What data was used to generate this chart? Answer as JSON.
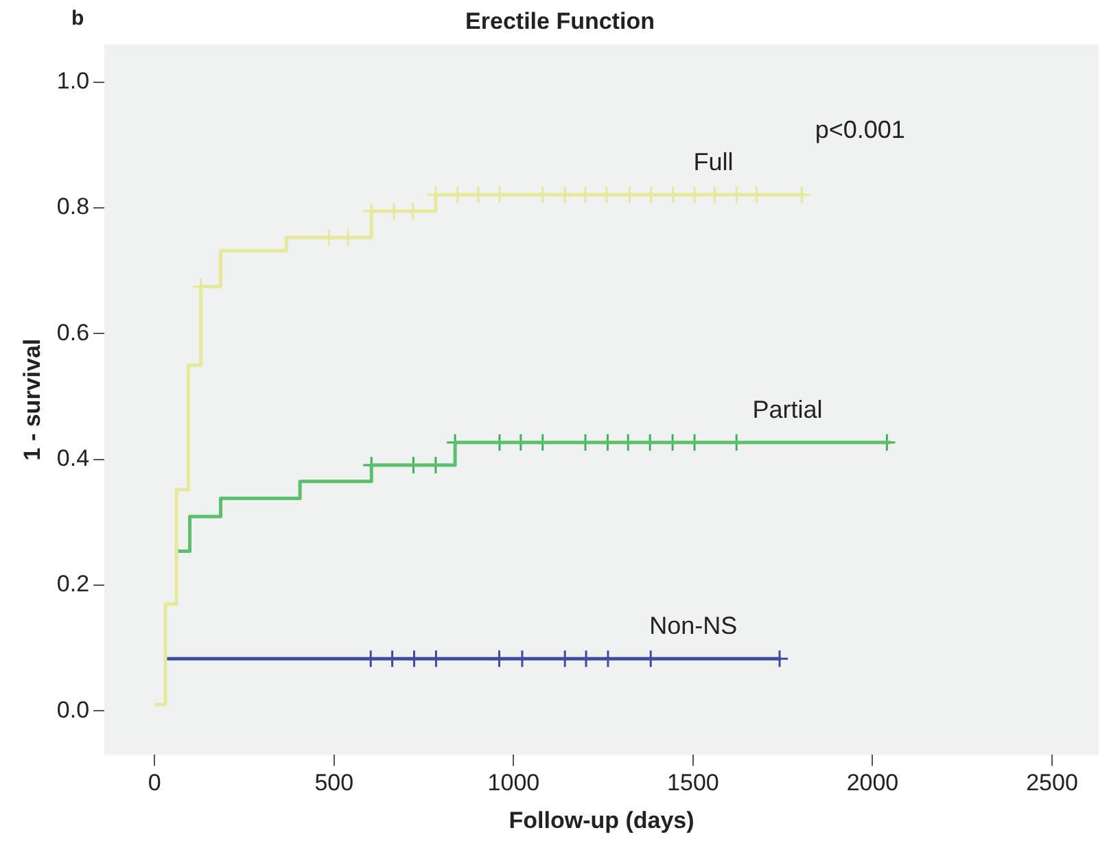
{
  "chart_data": {
    "type": "step",
    "title": "Erectile Function",
    "xlabel": "Follow-up (days)",
    "ylabel": "1 - survival",
    "xlim": [
      -140,
      2630
    ],
    "ylim": [
      -0.07,
      1.06
    ],
    "xticks": [
      0,
      500,
      1000,
      1500,
      2000,
      2500
    ],
    "yticks": [
      {
        "value": 0,
        "label": "0.0"
      },
      0.2,
      0.4,
      0.6,
      0.8,
      {
        "value": 1,
        "label": "1.0"
      }
    ],
    "grid": false,
    "legend": false,
    "annotations": [
      "b",
      "p<0.001"
    ],
    "series": [
      {
        "name": "Full",
        "type": "step",
        "color": "#e6e89a",
        "x": [
          0,
          30,
          61,
          94,
          129,
          184,
          367,
          604,
          783,
          1810
        ],
        "values": [
          0.01,
          0.17,
          0.352,
          0.55,
          0.675,
          0.732,
          0.753,
          0.795,
          0.821,
          0.821
        ]
      },
      {
        "type": "scatter",
        "marker": "cross",
        "color": "#e6e89a",
        "x": [
          129,
          486,
          539,
          604,
          667,
          719,
          783,
          844,
          902,
          961,
          1081,
          1143,
          1200,
          1259,
          1323,
          1383,
          1444,
          1504,
          1560,
          1621,
          1677,
          1803
        ],
        "values": [
          0.675,
          0.753,
          0.753,
          0.795,
          0.795,
          0.795,
          0.821,
          0.821,
          0.821,
          0.821,
          0.821,
          0.821,
          0.821,
          0.821,
          0.821,
          0.821,
          0.821,
          0.821,
          0.821,
          0.821,
          0.821,
          0.821
        ]
      },
      {
        "name": "Partial",
        "type": "step",
        "color": "#5cbf6e",
        "x": [
          62,
          98,
          184,
          405,
          604,
          837,
          2050
        ],
        "values": [
          0.254,
          0.309,
          0.338,
          0.365,
          0.391,
          0.427,
          0.427
        ]
      },
      {
        "type": "scatter",
        "marker": "cross",
        "color": "#3cb454",
        "x": [
          604,
          721,
          783,
          837,
          961,
          1020,
          1081,
          1200,
          1262,
          1319,
          1380,
          1443,
          1504,
          1621,
          2040
        ],
        "values": [
          0.391,
          0.391,
          0.391,
          0.427,
          0.427,
          0.427,
          0.427,
          0.427,
          0.427,
          0.427,
          0.427,
          0.427,
          0.427,
          0.427,
          0.427
        ]
      },
      {
        "name": "Non-NS",
        "type": "step",
        "color": "#3e4ca0",
        "x": [
          31,
          1745
        ],
        "values": [
          0.083,
          0.083
        ]
      },
      {
        "type": "scatter",
        "marker": "cross",
        "color": "#3e4ca0",
        "x": [
          602,
          662,
          723,
          784,
          960,
          1024,
          1143,
          1202,
          1263,
          1382,
          1741
        ],
        "values": [
          0.083,
          0.083,
          0.083,
          0.083,
          0.083,
          0.083,
          0.083,
          0.083,
          0.083,
          0.083,
          0.083
        ]
      }
    ]
  }
}
